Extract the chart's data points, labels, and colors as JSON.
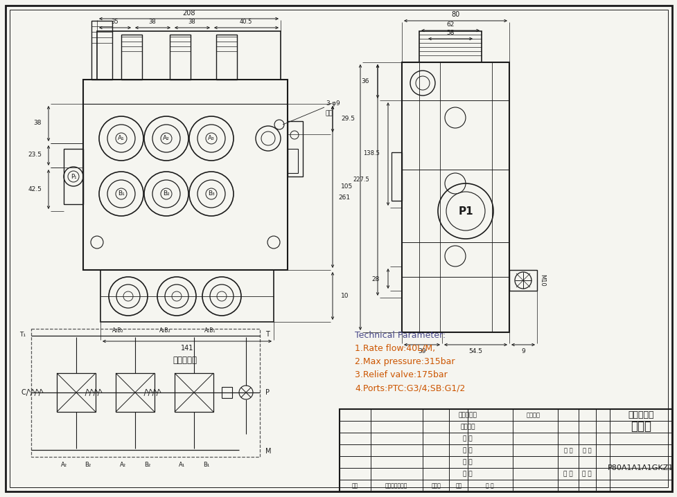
{
  "bg_color": "#f5f5f0",
  "line_color": "#1a1a1a",
  "tech_color": "#4a4a8a",
  "tech_orange": "#cc5500",
  "tech_params": [
    "Technical Parameter:",
    "1.Rate flow:40L/M,",
    "2.Max pressure:315bar",
    "3.Relief valve:175bar",
    "4.Ports:PTC:G3/4;SB:G1/2"
  ],
  "table_title1": "多路阀",
  "table_title2": "外型尺寸图",
  "part_number": "P80A1A1A1GKZ1",
  "hydraulic_label": "液压原理图",
  "note_3phi9": "3-φ9",
  "note_tonkong": "通孔",
  "label_T1": "T₁",
  "label_T": "T",
  "label_C": "C",
  "label_P": "P",
  "label_M": "M",
  "label_P1": "P₁",
  "dim_208": "208",
  "dim_35": "35",
  "dim_38a": "38",
  "dim_38b": "38",
  "dim_405": "40.5",
  "dim_38v": "38",
  "dim_235": "23.5",
  "dim_425": "42.5",
  "dim_295": "29.5",
  "dim_105": "105",
  "dim_10": "10",
  "dim_141": "141",
  "dim_80": "80",
  "dim_62": "62",
  "dim_58": "58",
  "dim_36": "36",
  "dim_261": "261",
  "dim_2275": "227.5",
  "dim_1385": "138.5",
  "dim_28": "28",
  "dim_39": "39",
  "dim_545": "54.5",
  "dim_9": "9",
  "dim_M10": "M10",
  "port_labels_bottom": [
    "A₂",
    "B₂",
    "A₂",
    "B₂",
    "A₁",
    "B₁"
  ],
  "table_rows": [
    "设 计",
    "制 图",
    "描 图",
    "校 对",
    "工艺检查",
    "标准化检查"
  ],
  "table_col1": "图样标记",
  "table_col2": "重 量",
  "table_col3": "比 例",
  "table_col4": "共 费",
  "table_col5": "第 页",
  "tb_bottom_labels": [
    "标记",
    "更改内容或依据",
    "更改人",
    "日期",
    "审 批"
  ]
}
